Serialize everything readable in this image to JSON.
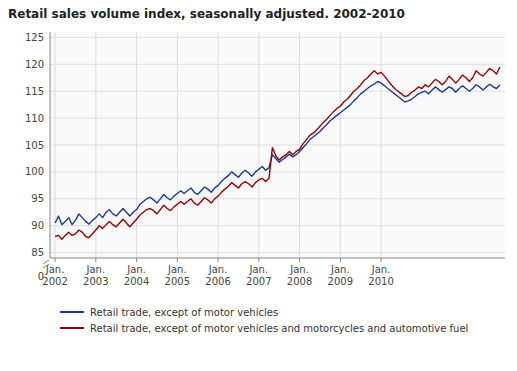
{
  "chart_data": {
    "type": "line",
    "title": "Retail sales volume index, seasonally adjusted. 2002-2010",
    "categories": [
      "Jan.\n2002",
      null,
      null,
      null,
      null,
      null,
      null,
      null,
      null,
      null,
      null,
      null,
      "Jan.\n2003",
      null,
      null,
      null,
      null,
      null,
      null,
      null,
      null,
      null,
      null,
      null,
      "Jan.\n2004",
      null,
      null,
      null,
      null,
      null,
      null,
      null,
      null,
      null,
      null,
      null,
      "Jan.\n2005",
      null,
      null,
      null,
      null,
      null,
      null,
      null,
      null,
      null,
      null,
      null,
      "Jan.\n2006",
      null,
      null,
      null,
      null,
      null,
      null,
      null,
      null,
      null,
      null,
      null,
      "Jan.\n2007",
      null,
      null,
      null,
      null,
      null,
      null,
      null,
      null,
      null,
      null,
      null,
      "Jan.\n2008",
      null,
      null,
      null,
      null,
      null,
      null,
      null,
      null,
      null,
      null,
      null,
      "Jan.\n2009",
      null,
      null,
      null,
      null,
      null,
      null,
      null,
      null,
      null,
      null,
      null,
      "Jan.\n2010",
      null,
      null,
      null,
      null,
      null,
      null,
      null,
      null,
      null,
      null,
      null,
      null,
      null,
      null,
      null,
      null,
      null,
      null,
      null,
      null,
      null,
      null,
      null,
      null,
      null,
      null,
      null,
      null,
      null,
      null,
      null,
      null,
      null,
      null,
      null
    ],
    "series": [
      {
        "name": "Retail trade, except of motor vehicles",
        "color": "#1a3a9c",
        "values": [
          90.5,
          91.8,
          90.2,
          90.8,
          91.5,
          90.2,
          91.0,
          92.2,
          91.5,
          90.8,
          90.3,
          91.0,
          91.5,
          92.2,
          91.5,
          92.5,
          93.0,
          92.2,
          91.8,
          92.5,
          93.2,
          92.5,
          91.8,
          92.5,
          93.0,
          94.0,
          94.5,
          95.0,
          95.3,
          94.8,
          94.2,
          95.0,
          95.8,
          95.2,
          94.8,
          95.5,
          96.0,
          96.5,
          96.0,
          96.5,
          97.0,
          96.2,
          95.8,
          96.5,
          97.2,
          96.8,
          96.2,
          97.0,
          97.5,
          98.2,
          98.8,
          99.3,
          100.0,
          99.5,
          99.0,
          99.8,
          100.3,
          99.8,
          99.2,
          100.0,
          100.5,
          101.0,
          100.3,
          100.8,
          103.2,
          102.5,
          101.8,
          102.3,
          102.8,
          103.3,
          102.8,
          103.2,
          103.8,
          104.5,
          105.2,
          106.0,
          106.5,
          107.0,
          107.5,
          108.2,
          108.8,
          109.5,
          110.0,
          110.5,
          111.0,
          111.5,
          112.0,
          112.5,
          113.2,
          113.8,
          114.5,
          115.0,
          115.5,
          116.0,
          116.3,
          116.8,
          116.5,
          116.0,
          115.5,
          115.0,
          114.5,
          114.0,
          113.5,
          113.0,
          113.2,
          113.5,
          114.0,
          114.5,
          114.8,
          115.0,
          114.5,
          115.2,
          115.8,
          115.3,
          114.8,
          115.3,
          115.8,
          115.5,
          114.8,
          115.5,
          116.0,
          115.5,
          115.0,
          115.5,
          116.2,
          115.8,
          115.2,
          115.8,
          116.3,
          115.8,
          115.5,
          116.2
        ]
      },
      {
        "name": "Retail trade, except of motor vehicles and motorcycles and automotive fuel",
        "color": "#990000",
        "values": [
          88.0,
          88.2,
          87.5,
          88.2,
          88.8,
          88.2,
          88.5,
          89.2,
          88.8,
          88.0,
          87.8,
          88.5,
          89.2,
          90.0,
          89.5,
          90.2,
          90.8,
          90.2,
          89.8,
          90.5,
          91.2,
          90.5,
          89.8,
          90.5,
          91.2,
          92.0,
          92.5,
          93.0,
          93.2,
          92.8,
          92.2,
          93.0,
          93.8,
          93.2,
          92.8,
          93.5,
          94.0,
          94.5,
          94.0,
          94.5,
          95.0,
          94.2,
          93.8,
          94.5,
          95.2,
          94.8,
          94.2,
          95.0,
          95.5,
          96.2,
          96.8,
          97.3,
          98.0,
          97.5,
          97.0,
          97.8,
          98.2,
          97.8,
          97.2,
          98.0,
          98.5,
          98.8,
          98.2,
          98.8,
          104.5,
          103.0,
          102.2,
          102.8,
          103.2,
          103.8,
          103.2,
          103.8,
          104.2,
          105.2,
          106.0,
          106.8,
          107.2,
          107.8,
          108.5,
          109.2,
          109.8,
          110.5,
          111.2,
          111.8,
          112.2,
          113.0,
          113.5,
          114.2,
          115.0,
          115.5,
          116.2,
          117.0,
          117.5,
          118.2,
          118.8,
          118.2,
          118.5,
          117.8,
          117.0,
          116.2,
          115.5,
          115.0,
          114.5,
          114.0,
          114.2,
          114.8,
          115.2,
          115.8,
          115.5,
          116.2,
          115.8,
          116.5,
          117.2,
          116.8,
          116.2,
          116.8,
          117.8,
          117.2,
          116.5,
          117.2,
          118.0,
          117.5,
          116.8,
          117.5,
          118.8,
          118.2,
          117.8,
          118.5,
          119.2,
          118.8,
          118.2,
          119.5
        ]
      }
    ],
    "ylim": [
      84,
      126
    ],
    "yticks": [
      85,
      90,
      95,
      100,
      105,
      110,
      115,
      120,
      125
    ],
    "annotations": [
      {
        "text": "0"
      }
    ],
    "grid": true,
    "legend": "bottom"
  }
}
